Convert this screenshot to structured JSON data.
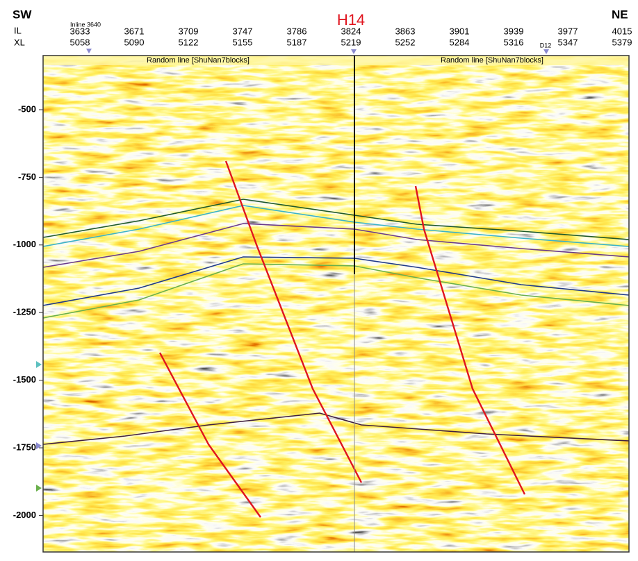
{
  "header": {
    "left": "SW",
    "right": "NE",
    "row_labels": [
      "IL",
      "XL"
    ],
    "well": "H14",
    "inline_note": "Inline 3640",
    "marker": "D12"
  },
  "columns": [
    {
      "il": "3633",
      "xl": "5058"
    },
    {
      "il": "3671",
      "xl": "5090"
    },
    {
      "il": "3709",
      "xl": "5122"
    },
    {
      "il": "3747",
      "xl": "5155"
    },
    {
      "il": "3786",
      "xl": "5187"
    },
    {
      "il": "3824",
      "xl": "5219"
    },
    {
      "il": "3863",
      "xl": "5252"
    },
    {
      "il": "3901",
      "xl": "5284"
    },
    {
      "il": "3939",
      "xl": "5316"
    },
    {
      "il": "3977",
      "xl": "5347"
    },
    {
      "il": "4015",
      "xl": "5379"
    }
  ],
  "panel_labels": [
    "Random line [ShuNan7blocks]",
    "Random line [ShuNan7blocks]"
  ],
  "y_axis": {
    "ticks": [
      "-500",
      "-750",
      "-1000",
      "-1250",
      "-1500",
      "-1750",
      "-2000"
    ]
  }
}
